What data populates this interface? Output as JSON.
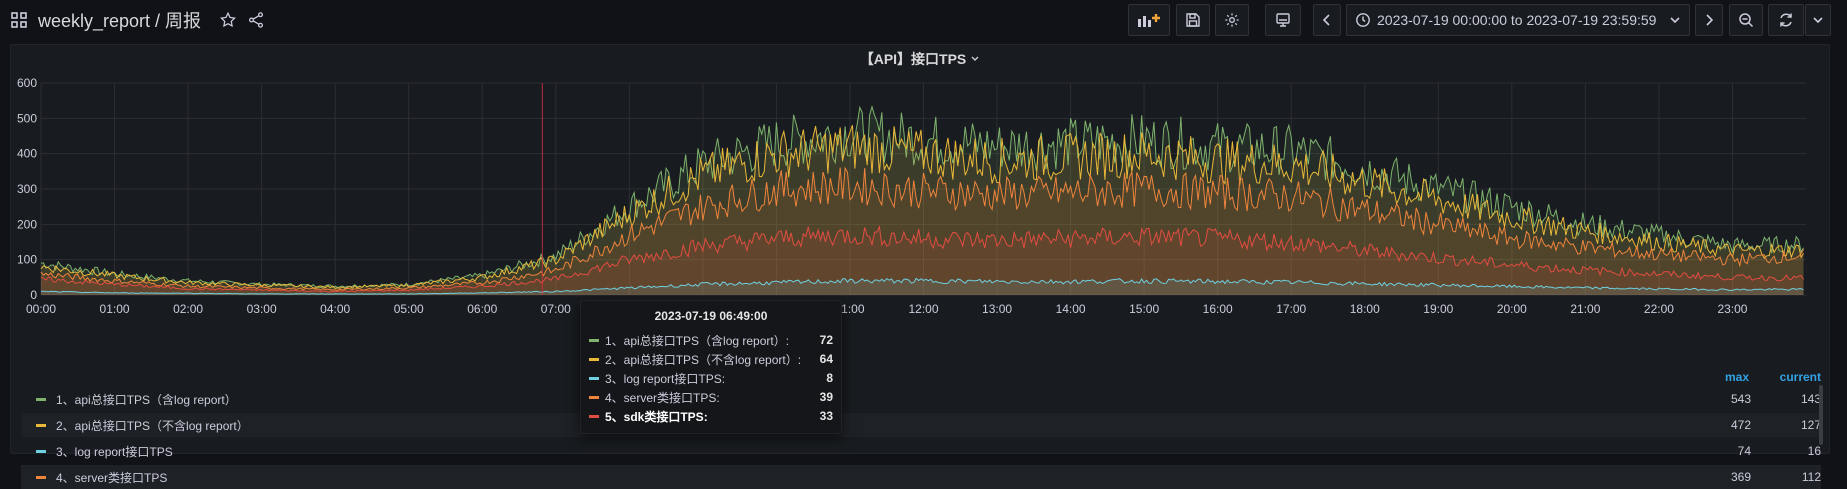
{
  "header": {
    "title": "weekly_report / 周报",
    "time_range": "2023-07-19 00:00:00 to 2023-07-19 23:59:59",
    "icons": [
      "grid-icon",
      "star-icon",
      "share-icon",
      "add-panel-icon",
      "save-icon",
      "gear-icon",
      "tv-icon",
      "chevron-left-icon",
      "clock-icon",
      "chevron-down-icon",
      "chevron-right-icon",
      "zoom-out-icon",
      "refresh-icon",
      "chevron-down-icon"
    ]
  },
  "panel": {
    "title": "【API】接口TPS"
  },
  "chart_data": {
    "type": "area",
    "title": "【API】接口TPS",
    "xlabel": "",
    "ylabel": "",
    "ylim": [
      0,
      600
    ],
    "yticks": [
      0,
      100,
      200,
      300,
      400,
      500,
      600
    ],
    "xticks": [
      "00:00",
      "01:00",
      "02:00",
      "03:00",
      "04:00",
      "05:00",
      "06:00",
      "07:00",
      "08:00",
      "09:00",
      "10:00",
      "11:00",
      "12:00",
      "13:00",
      "14:00",
      "15:00",
      "16:00",
      "17:00",
      "18:00",
      "19:00",
      "20:00",
      "21:00",
      "22:00",
      "23:00"
    ],
    "grid": true,
    "legend": "bottom",
    "x": [
      "00:00",
      "01:00",
      "02:00",
      "03:00",
      "04:00",
      "05:00",
      "06:00",
      "07:00",
      "08:00",
      "09:00",
      "10:00",
      "11:00",
      "12:00",
      "13:00",
      "14:00",
      "15:00",
      "16:00",
      "17:00",
      "18:00",
      "19:00",
      "20:00",
      "21:00",
      "22:00",
      "23:00",
      "23:59"
    ],
    "series": [
      {
        "name": "1、api总接口TPS（含log report）",
        "color": "#7eb26d",
        "values": [
          90,
          60,
          40,
          30,
          25,
          30,
          55,
          110,
          250,
          370,
          430,
          460,
          440,
          420,
          430,
          440,
          420,
          410,
          360,
          300,
          250,
          200,
          170,
          140,
          143
        ]
      },
      {
        "name": "2、api总接口TPS（不含log report）",
        "color": "#eab839",
        "values": [
          80,
          55,
          35,
          28,
          22,
          27,
          50,
          100,
          230,
          340,
          400,
          420,
          400,
          380,
          390,
          400,
          380,
          370,
          320,
          270,
          220,
          180,
          150,
          125,
          127
        ]
      },
      {
        "name": "3、log report接口TPS",
        "color": "#6ed0e0",
        "values": [
          10,
          6,
          5,
          3,
          3,
          3,
          6,
          10,
          20,
          30,
          35,
          40,
          40,
          38,
          38,
          40,
          38,
          36,
          32,
          28,
          24,
          20,
          17,
          15,
          16
        ]
      },
      {
        "name": "4、server类接口TPS",
        "color": "#ef843c",
        "values": [
          60,
          40,
          25,
          20,
          15,
          20,
          35,
          70,
          170,
          250,
          300,
          310,
          295,
          285,
          290,
          300,
          290,
          280,
          240,
          200,
          160,
          135,
          115,
          100,
          112
        ]
      },
      {
        "name": "5、sdk类接口TPS",
        "color": "#e24d42",
        "values": [
          45,
          30,
          18,
          14,
          10,
          14,
          25,
          45,
          100,
          140,
          160,
          170,
          160,
          155,
          160,
          165,
          160,
          150,
          125,
          105,
          85,
          70,
          60,
          50,
          48
        ]
      }
    ],
    "hover_time": "06:49"
  },
  "tooltip": {
    "time": "2023-07-19 06:49:00",
    "rows": [
      {
        "label": "1、api总接口TPS（含log report）:",
        "value": "72",
        "color": "#7eb26d"
      },
      {
        "label": "2、api总接口TPS（不含log report）:",
        "value": "64",
        "color": "#eab839"
      },
      {
        "label": "3、log report接口TPS:",
        "value": "8",
        "color": "#6ed0e0"
      },
      {
        "label": "4、server类接口TPS:",
        "value": "39",
        "color": "#ef843c"
      },
      {
        "label": "5、sdk类接口TPS:",
        "value": "33",
        "color": "#e24d42"
      }
    ]
  },
  "legend": {
    "max_label": "max",
    "current_label": "current",
    "rows": [
      {
        "name": "1、api总接口TPS（含log report）",
        "max": "543",
        "current": "143",
        "color": "#7eb26d"
      },
      {
        "name": "2、api总接口TPS（不含log report）",
        "max": "472",
        "current": "127",
        "color": "#eab839"
      },
      {
        "name": "3、log report接口TPS",
        "max": "74",
        "current": "16",
        "color": "#6ed0e0"
      },
      {
        "name": "4、server类接口TPS",
        "max": "369",
        "current": "112",
        "color": "#ef843c"
      }
    ]
  }
}
